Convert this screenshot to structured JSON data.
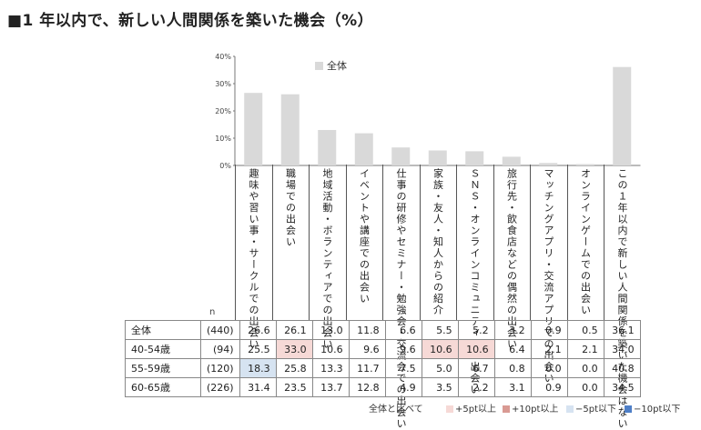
{
  "title": "■1 年以内で、新しい人間関係を築いた機会（%）",
  "colors": {
    "bar": "#d9d9d9",
    "plus5": "#f6d9d6",
    "plus10": "#d99a93",
    "minus5": "#d6e3f1",
    "minus10": "#4f7fc7"
  },
  "chart_data": {
    "type": "bar",
    "legend": "全体",
    "legend_position": "top-center",
    "ylim": [
      0,
      40
    ],
    "yticks": [
      "0%",
      "10%",
      "20%",
      "30%",
      "40%"
    ],
    "grid": false,
    "categories": [
      "趣味や習い事・サークルでの出会い",
      "職場での出会い",
      "地域活動・ボランティアでの出会い",
      "イベントや講座での出会い",
      "仕事の研修やセミナー・勉強会・交流会での出会い",
      "家族・友人・知人からの紹介",
      "ＳＮＳ・オンラインコミュニティでの出会い",
      "旅行先・飲食店などの偶然の出会い",
      "マッチングアプリ・交流アプリでの出会い",
      "オンラインゲームでの出会い",
      "この１年以内で新しい人間関係を築いた機会はない"
    ],
    "series": [
      {
        "name": "全体",
        "values": [
          26.6,
          26.1,
          13.0,
          11.8,
          6.6,
          5.5,
          5.2,
          3.2,
          0.9,
          0.5,
          36.1
        ]
      }
    ]
  },
  "table": {
    "n_header": "n",
    "rows": [
      {
        "name": "全体",
        "n": "(440)",
        "values": [
          "26.6",
          "26.1",
          "13.0",
          "11.8",
          "6.6",
          "5.5",
          "5.2",
          "3.2",
          "0.9",
          "0.5",
          "36.1"
        ],
        "highlights": [
          "",
          "",
          "",
          "",
          "",
          "",
          "",
          "",
          "",
          "",
          ""
        ]
      },
      {
        "name": "40-54歳",
        "n": "(94)",
        "values": [
          "25.5",
          "33.0",
          "10.6",
          "9.6",
          "9.6",
          "10.6",
          "10.6",
          "6.4",
          "2.1",
          "2.1",
          "34.0"
        ],
        "highlights": [
          "",
          "p5",
          "",
          "",
          "",
          "p5",
          "p5",
          "",
          "",
          "",
          ""
        ]
      },
      {
        "name": "55-59歳",
        "n": "(120)",
        "values": [
          "18.3",
          "25.8",
          "13.3",
          "11.7",
          "7.5",
          "5.0",
          "6.7",
          "0.8",
          "0.0",
          "0.0",
          "40.8"
        ],
        "highlights": [
          "m5",
          "",
          "",
          "",
          "",
          "",
          "",
          "",
          "",
          "",
          ""
        ]
      },
      {
        "name": "60-65歳",
        "n": "(226)",
        "values": [
          "31.4",
          "23.5",
          "13.7",
          "12.8",
          "4.9",
          "3.5",
          "2.2",
          "3.1",
          "0.9",
          "0.0",
          "34.5"
        ],
        "highlights": [
          "",
          "",
          "",
          "",
          "",
          "",
          "",
          "",
          "",
          "",
          ""
        ]
      }
    ]
  },
  "footnote": {
    "compare": "全体と比べて",
    "plus5": "+5pt以上",
    "plus10": "+10pt以上",
    "minus5": "−5pt以下",
    "minus10": "−10pt以下"
  }
}
